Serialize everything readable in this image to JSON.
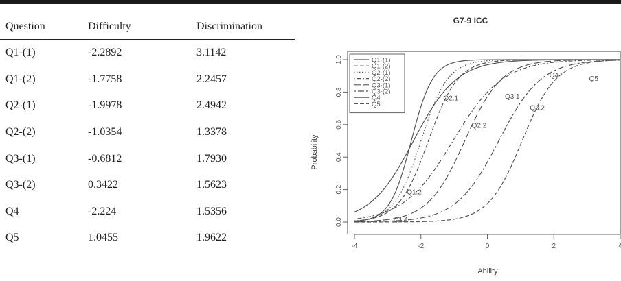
{
  "table": {
    "headers": [
      "Question",
      "Difficulty",
      "Discrimination"
    ],
    "rows": [
      {
        "question": "Q1-(1)",
        "difficulty": "-2.2892",
        "discrimination": "3.1142"
      },
      {
        "question": "Q1-(2)",
        "difficulty": "-1.7758",
        "discrimination": "2.2457"
      },
      {
        "question": "Q2-(1)",
        "difficulty": "-1.9978",
        "discrimination": "2.4942"
      },
      {
        "question": "Q2-(2)",
        "difficulty": "-1.0354",
        "discrimination": "1.3378"
      },
      {
        "question": "Q3-(1)",
        "difficulty": "-0.6812",
        "discrimination": "1.7930"
      },
      {
        "question": "Q3-(2)",
        "difficulty": "0.3422",
        "discrimination": "1.5623"
      },
      {
        "question": "Q4",
        "difficulty": "-2.224",
        "discrimination": "1.5356"
      },
      {
        "question": "Q5",
        "difficulty": "1.0455",
        "discrimination": "1.9622"
      }
    ]
  },
  "chart_data": {
    "type": "line",
    "title": "G7-9 ICC",
    "xlabel": "Ability",
    "ylabel": "Probability",
    "xlim": [
      -4,
      4
    ],
    "ylim": [
      0,
      1
    ],
    "xticks": [
      "-4",
      "-2",
      "0",
      "2",
      "4"
    ],
    "yticks": [
      "0.0",
      "0.2",
      "0.4",
      "0.6",
      "0.8",
      "1.0"
    ],
    "grid": false,
    "legend_position": "top-left",
    "line_color": "#555555",
    "series": [
      {
        "name": "Q1-(1)",
        "dash": "solid",
        "model": "2PL",
        "difficulty": -2.2892,
        "discrimination": 3.1142
      },
      {
        "name": "Q1-(2)",
        "dash": "dashed",
        "model": "2PL",
        "difficulty": -1.7758,
        "discrimination": 2.2457
      },
      {
        "name": "Q2-(1)",
        "dash": "dotted",
        "model": "2PL",
        "difficulty": -1.9978,
        "discrimination": 2.4942
      },
      {
        "name": "Q2-(2)",
        "dash": "dotdash",
        "model": "2PL",
        "difficulty": -1.0354,
        "discrimination": 1.3378
      },
      {
        "name": "Q3-(1)",
        "dash": "longdash",
        "model": "2PL",
        "difficulty": -0.6812,
        "discrimination": 1.793
      },
      {
        "name": "Q3-(2)",
        "dash": "twodash",
        "model": "2PL",
        "difficulty": 0.3422,
        "discrimination": 1.5623
      },
      {
        "name": "Q4",
        "dash": "solid",
        "model": "2PL",
        "difficulty": -2.224,
        "discrimination": 1.5356
      },
      {
        "name": "Q5",
        "dash": "dashed",
        "model": "2PL",
        "difficulty": 1.0455,
        "discrimination": 1.9622
      }
    ],
    "annotations": [
      {
        "text": "Q1.1",
        "x": -2.6,
        "y": 0.0
      },
      {
        "text": "Q1.2",
        "x": -2.2,
        "y": 0.17
      },
      {
        "text": "Q2.1",
        "x": -1.1,
        "y": 0.75
      },
      {
        "text": "Q2.2",
        "x": -0.25,
        "y": 0.58
      },
      {
        "text": "Q3.1",
        "x": 0.75,
        "y": 0.76
      },
      {
        "text": "Q3.2",
        "x": 1.5,
        "y": 0.69
      },
      {
        "text": "Q4",
        "x": 2.0,
        "y": 0.89
      },
      {
        "text": "Q5",
        "x": 3.2,
        "y": 0.87
      }
    ]
  }
}
